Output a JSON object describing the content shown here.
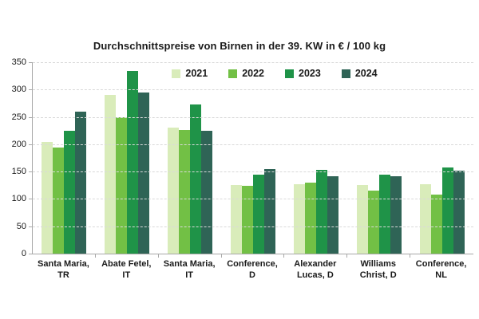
{
  "title": "Durchschnittspreise von Birnen in der 39. KW in € / 100 kg",
  "chart_data": {
    "type": "bar",
    "title": "Durchschnittspreise von Birnen in der 39. KW in € / 100 kg",
    "categories": [
      {
        "line1": "Santa Maria,",
        "line2": "TR"
      },
      {
        "line1": "Abate Fetel,",
        "line2": "IT"
      },
      {
        "line1": "Santa Maria,",
        "line2": "IT"
      },
      {
        "line1": "Conference,",
        "line2": "D"
      },
      {
        "line1": "Alexander",
        "line2": "Lucas, D"
      },
      {
        "line1": "Williams",
        "line2": "Christ, D"
      },
      {
        "line1": "Conference,",
        "line2": "NL"
      }
    ],
    "series": [
      {
        "name": "2021",
        "color": "#d9ecba",
        "values": [
          204,
          290,
          231,
          126,
          127,
          126,
          127
        ]
      },
      {
        "name": "2022",
        "color": "#72c045",
        "values": [
          194,
          249,
          226,
          124,
          130,
          115,
          108
        ]
      },
      {
        "name": "2023",
        "color": "#1f9348",
        "values": [
          225,
          334,
          273,
          145,
          153,
          145,
          157
        ]
      },
      {
        "name": "2024",
        "color": "#2f6456",
        "values": [
          259,
          294,
          225,
          155,
          141,
          142,
          152
        ]
      }
    ],
    "ylim": [
      0,
      350
    ],
    "yticks": [
      0,
      50,
      100,
      150,
      200,
      250,
      300,
      350
    ],
    "grid": "horizontal-dashed",
    "legend_position": "top-center-inside",
    "xlabel": "",
    "ylabel": ""
  },
  "colors": {
    "background": "#ffffff",
    "grid": "#d9d9d9",
    "axis": "#a8a8a8",
    "text": "#1a1a1a"
  }
}
